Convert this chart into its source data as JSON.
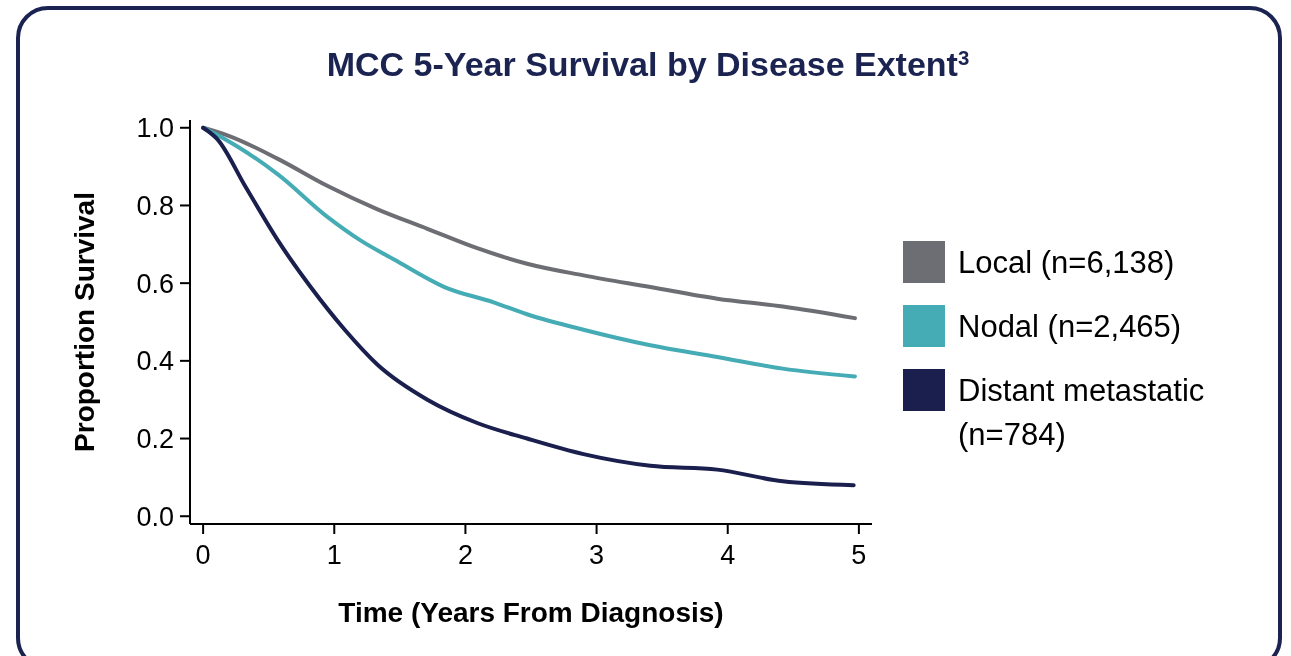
{
  "chart_data": {
    "type": "line",
    "title": "MCC 5-Year Survival by Disease Extent$^{3}$",
    "xlabel": "Time (Years From Diagnosis)",
    "ylabel": "Proportion Survival",
    "xlim": [
      -0.1,
      5.1
    ],
    "xticks": [
      0,
      1,
      2,
      3,
      4,
      5
    ],
    "ylim": [
      -0.02,
      1.02
    ],
    "yticks": [
      {
        "value": 0,
        "label": "0.0"
      },
      0.2,
      0.4,
      0.6,
      0.8,
      {
        "value": 1,
        "label": "1.0"
      }
    ],
    "grid": false,
    "legend": "right",
    "marker": "none",
    "line_style": "solid",
    "series": [
      {
        "name": "Local (n=6,138)",
        "color": "#6d6e73",
        "x": [
          0,
          0.19,
          0.57,
          0.95,
          1.33,
          1.71,
          2.09,
          2.47,
          2.9,
          3.41,
          3.92,
          4.42,
          4.97
        ],
        "values": [
          1.0,
          0.98,
          0.92,
          0.85,
          0.79,
          0.74,
          0.69,
          0.65,
          0.62,
          0.59,
          0.56,
          0.54,
          0.51
        ]
      },
      {
        "name": "Nodal (n=2,465)",
        "color": "#45acb5",
        "x": [
          0,
          0.17,
          0.27,
          0.57,
          0.95,
          1.2,
          1.46,
          1.84,
          2.22,
          2.47,
          2.9,
          3.41,
          3.92,
          4.42,
          4.97
        ],
        "values": [
          1.0,
          0.97,
          0.95,
          0.88,
          0.77,
          0.71,
          0.66,
          0.59,
          0.55,
          0.52,
          0.48,
          0.44,
          0.41,
          0.38,
          0.36
        ]
      },
      {
        "name": "Distant metastatic (n=784)",
        "color": "#1a1f4e",
        "x": [
          0,
          0.11,
          0.32,
          0.57,
          0.82,
          1.08,
          1.33,
          1.71,
          2.09,
          2.47,
          2.9,
          3.41,
          3.92,
          4.42,
          4.96
        ],
        "values": [
          1.0,
          0.97,
          0.85,
          0.71,
          0.59,
          0.48,
          0.39,
          0.3,
          0.24,
          0.2,
          0.16,
          0.13,
          0.12,
          0.09,
          0.08
        ]
      }
    ]
  }
}
